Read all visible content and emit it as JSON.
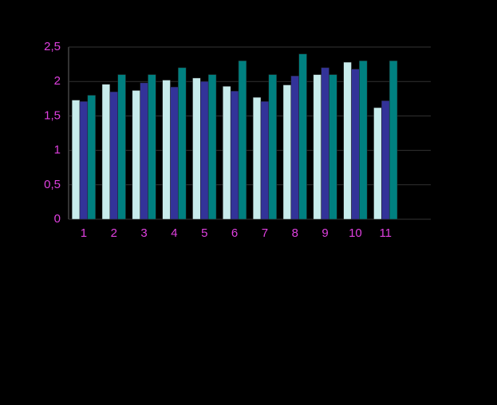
{
  "chart_data": {
    "type": "bar",
    "categories": [
      "1",
      "2",
      "3",
      "4",
      "5",
      "6",
      "7",
      "8",
      "9",
      "10",
      "11",
      null
    ],
    "series": [
      {
        "color": "#c8ecec",
        "values": [
          1.73,
          1.96,
          1.87,
          2.02,
          2.05,
          1.93,
          1.77,
          1.95,
          2.1,
          2.28,
          1.62,
          null
        ]
      },
      {
        "color": "#333399",
        "values": [
          1.71,
          1.85,
          1.98,
          1.92,
          2.0,
          1.86,
          1.71,
          2.08,
          2.2,
          2.18,
          1.72,
          null
        ]
      },
      {
        "color": "#008080",
        "values": [
          1.8,
          2.1,
          2.1,
          2.2,
          2.1,
          2.3,
          2.1,
          2.4,
          2.1,
          2.3,
          2.3,
          null
        ]
      }
    ],
    "ylim": [
      0,
      2.5
    ],
    "yticks": [
      0,
      {
        "value": 0.5,
        "label": "0,5"
      },
      1,
      {
        "value": 1.5,
        "label": "1,5"
      },
      2,
      {
        "value": 2.5,
        "label": "2,5"
      }
    ],
    "grid": true
  }
}
